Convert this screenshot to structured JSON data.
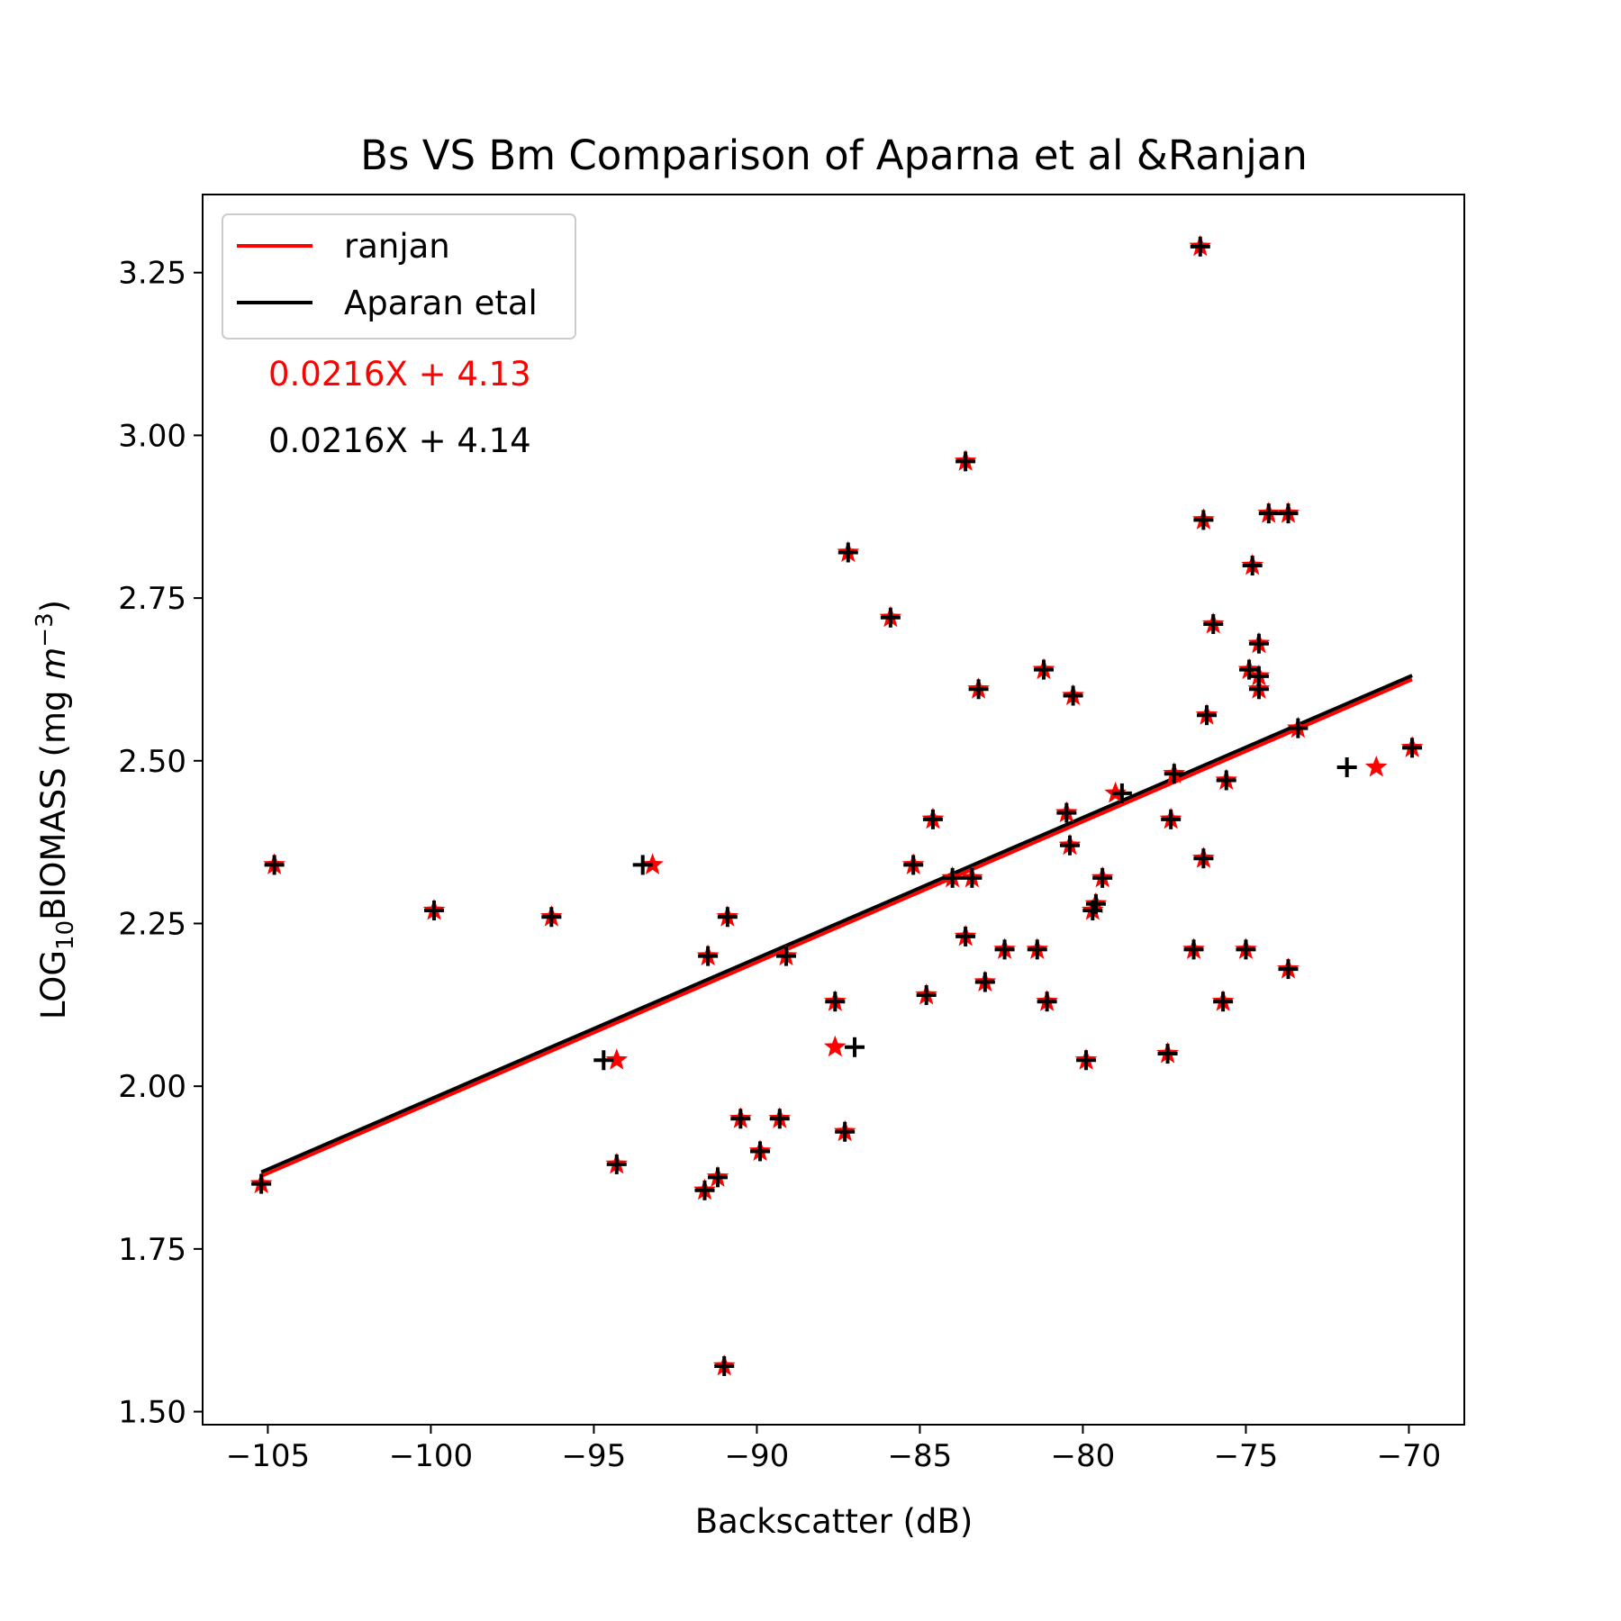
{
  "chart_data": {
    "type": "scatter",
    "title": "Bs VS Bm Comparison of Aparna et al &Ranjan",
    "xlabel": "Backscatter (dB)",
    "ylabel_parts": [
      "LOG",
      "10",
      "BIOMASS (mg ",
      "m",
      "−3",
      ")"
    ],
    "xlim": [
      -107,
      -68.3
    ],
    "ylim": [
      1.48,
      3.37
    ],
    "xticks": [
      -105,
      -100,
      -95,
      -90,
      -85,
      -80,
      -75,
      -70
    ],
    "xtick_labels": [
      "−105",
      "−100",
      "−95",
      "−90",
      "−85",
      "−80",
      "−75",
      "−70"
    ],
    "yticks": [
      1.5,
      1.75,
      2.0,
      2.25,
      2.5,
      2.75,
      3.0,
      3.25
    ],
    "ytick_labels": [
      "1.50",
      "1.75",
      "2.00",
      "2.25",
      "2.50",
      "2.75",
      "3.00",
      "3.25"
    ],
    "legend": {
      "placement": "top-left",
      "entries": [
        {
          "label": "ranjan",
          "color": "#ff0000"
        },
        {
          "label": "Aparan etal",
          "color": "#000000"
        }
      ]
    },
    "annotations": [
      {
        "text": "0.0216X +  4.13",
        "color": "#ff0000"
      },
      {
        "text": "0.0216X +  4.14",
        "color": "#000000"
      }
    ],
    "fit_lines": [
      {
        "name": "ranjan",
        "color": "#ff0000",
        "x": [
          -105.2,
          -69.9
        ],
        "y": [
          1.862,
          2.625
        ]
      },
      {
        "name": "Aparan etal",
        "color": "#000000",
        "x": [
          -105.2,
          -69.9
        ],
        "y": [
          1.868,
          2.631
        ]
      }
    ],
    "series": [
      {
        "name": "ranjan",
        "marker": "star",
        "color": "#ff0000",
        "points": [
          [
            -105.2,
            1.85
          ],
          [
            -104.8,
            2.34
          ],
          [
            -99.9,
            2.27
          ],
          [
            -96.3,
            2.26
          ],
          [
            -93.2,
            2.34
          ],
          [
            -94.3,
            2.04
          ],
          [
            -94.3,
            1.88
          ],
          [
            -91.6,
            1.84
          ],
          [
            -91.2,
            1.86
          ],
          [
            -91.5,
            2.2
          ],
          [
            -90.9,
            2.26
          ],
          [
            -91.0,
            1.57
          ],
          [
            -90.5,
            1.95
          ],
          [
            -89.9,
            1.9
          ],
          [
            -89.3,
            1.95
          ],
          [
            -89.1,
            2.2
          ],
          [
            -87.6,
            2.13
          ],
          [
            -87.6,
            2.06
          ],
          [
            -87.3,
            1.93
          ],
          [
            -87.2,
            2.82
          ],
          [
            -85.9,
            2.72
          ],
          [
            -85.2,
            2.34
          ],
          [
            -84.8,
            2.14
          ],
          [
            -84.6,
            2.41
          ],
          [
            -84.0,
            2.32
          ],
          [
            -83.6,
            2.96
          ],
          [
            -83.6,
            2.23
          ],
          [
            -83.4,
            2.32
          ],
          [
            -83.2,
            2.61
          ],
          [
            -83.0,
            2.16
          ],
          [
            -82.4,
            2.21
          ],
          [
            -81.4,
            2.21
          ],
          [
            -81.2,
            2.64
          ],
          [
            -81.1,
            2.13
          ],
          [
            -80.5,
            2.42
          ],
          [
            -80.4,
            2.37
          ],
          [
            -80.3,
            2.6
          ],
          [
            -79.9,
            2.04
          ],
          [
            -79.7,
            2.27
          ],
          [
            -79.6,
            2.28
          ],
          [
            -79.4,
            2.32
          ],
          [
            -79.0,
            2.45
          ],
          [
            -77.4,
            2.05
          ],
          [
            -77.3,
            2.41
          ],
          [
            -77.2,
            2.48
          ],
          [
            -76.6,
            2.21
          ],
          [
            -76.4,
            3.29
          ],
          [
            -76.3,
            2.87
          ],
          [
            -76.3,
            2.35
          ],
          [
            -76.2,
            2.57
          ],
          [
            -76.0,
            2.71
          ],
          [
            -75.7,
            2.13
          ],
          [
            -75.6,
            2.47
          ],
          [
            -75.0,
            2.21
          ],
          [
            -74.9,
            2.64
          ],
          [
            -74.8,
            2.8
          ],
          [
            -74.6,
            2.68
          ],
          [
            -74.6,
            2.63
          ],
          [
            -74.6,
            2.61
          ],
          [
            -74.3,
            2.88
          ],
          [
            -73.7,
            2.88
          ],
          [
            -73.7,
            2.18
          ],
          [
            -73.4,
            2.55
          ],
          [
            -71.0,
            2.49
          ],
          [
            -69.9,
            2.52
          ]
        ]
      },
      {
        "name": "Aparan etal",
        "marker": "plus",
        "color": "#000000",
        "points": [
          [
            -105.2,
            1.85
          ],
          [
            -104.8,
            2.34
          ],
          [
            -99.9,
            2.27
          ],
          [
            -96.3,
            2.26
          ],
          [
            -93.5,
            2.34
          ],
          [
            -94.7,
            2.04
          ],
          [
            -94.3,
            1.88
          ],
          [
            -91.6,
            1.84
          ],
          [
            -91.2,
            1.86
          ],
          [
            -91.5,
            2.2
          ],
          [
            -90.9,
            2.26
          ],
          [
            -91.0,
            1.57
          ],
          [
            -90.5,
            1.95
          ],
          [
            -89.9,
            1.9
          ],
          [
            -89.3,
            1.95
          ],
          [
            -89.1,
            2.2
          ],
          [
            -87.6,
            2.13
          ],
          [
            -87.0,
            2.06
          ],
          [
            -87.3,
            1.93
          ],
          [
            -87.2,
            2.82
          ],
          [
            -85.9,
            2.72
          ],
          [
            -85.2,
            2.34
          ],
          [
            -84.8,
            2.14
          ],
          [
            -84.6,
            2.41
          ],
          [
            -84.0,
            2.32
          ],
          [
            -83.6,
            2.96
          ],
          [
            -83.6,
            2.23
          ],
          [
            -83.4,
            2.32
          ],
          [
            -83.2,
            2.61
          ],
          [
            -83.0,
            2.16
          ],
          [
            -82.4,
            2.21
          ],
          [
            -81.4,
            2.21
          ],
          [
            -81.2,
            2.64
          ],
          [
            -81.1,
            2.13
          ],
          [
            -80.5,
            2.42
          ],
          [
            -80.4,
            2.37
          ],
          [
            -80.3,
            2.6
          ],
          [
            -79.9,
            2.04
          ],
          [
            -79.7,
            2.27
          ],
          [
            -79.6,
            2.28
          ],
          [
            -79.4,
            2.32
          ],
          [
            -78.8,
            2.45
          ],
          [
            -77.4,
            2.05
          ],
          [
            -77.3,
            2.41
          ],
          [
            -77.2,
            2.48
          ],
          [
            -76.6,
            2.21
          ],
          [
            -76.4,
            3.29
          ],
          [
            -76.3,
            2.87
          ],
          [
            -76.3,
            2.35
          ],
          [
            -76.2,
            2.57
          ],
          [
            -76.0,
            2.71
          ],
          [
            -75.7,
            2.13
          ],
          [
            -75.6,
            2.47
          ],
          [
            -75.0,
            2.21
          ],
          [
            -74.9,
            2.64
          ],
          [
            -74.8,
            2.8
          ],
          [
            -74.6,
            2.68
          ],
          [
            -74.6,
            2.63
          ],
          [
            -74.6,
            2.61
          ],
          [
            -74.3,
            2.88
          ],
          [
            -73.7,
            2.88
          ],
          [
            -73.7,
            2.18
          ],
          [
            -73.4,
            2.55
          ],
          [
            -71.9,
            2.49
          ],
          [
            -69.9,
            2.52
          ]
        ]
      }
    ]
  }
}
